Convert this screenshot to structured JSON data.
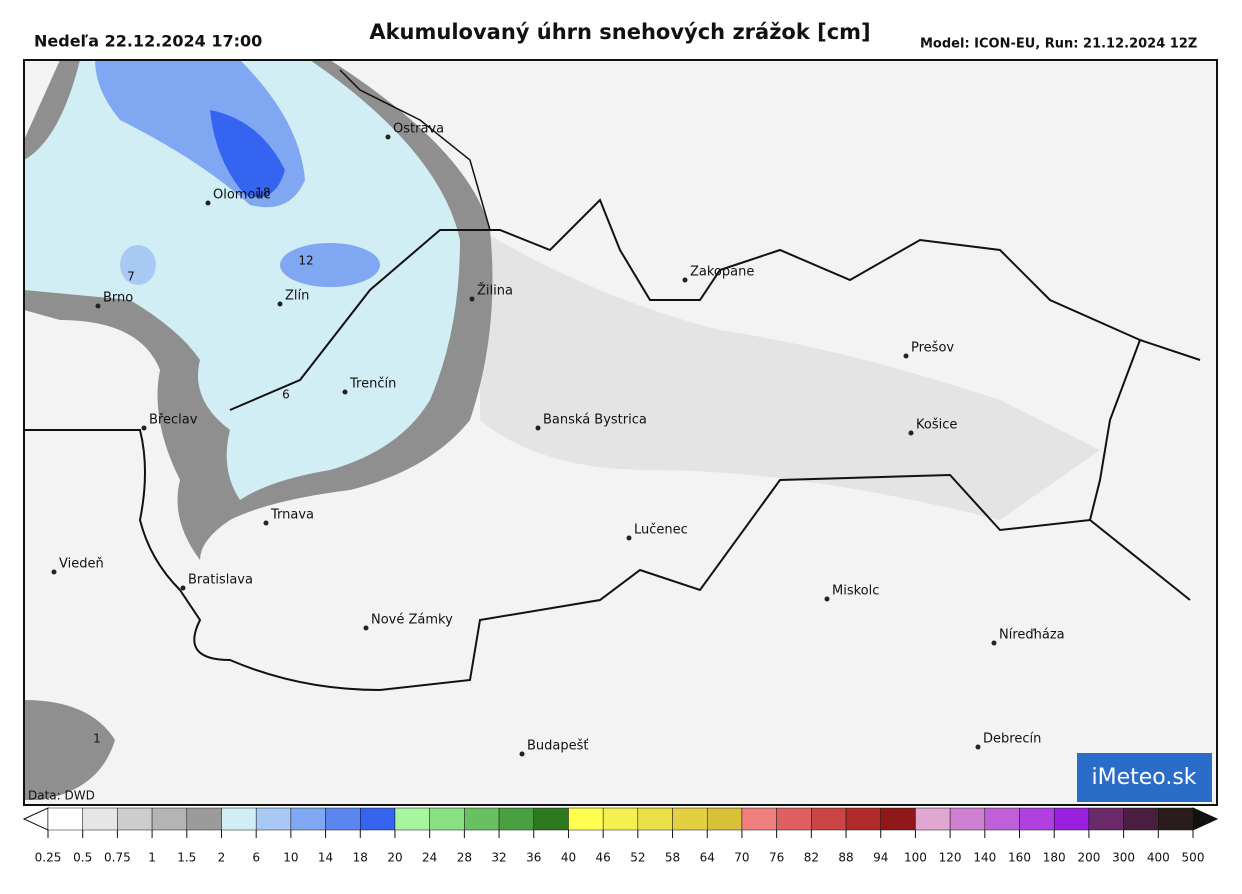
{
  "header": {
    "datetime": "Nedeľa 22.12.2024 17:00",
    "title": "Akumulovaný úhrn snehových zrážok [cm]",
    "model": "Model: ICON-EU, Run: 21.12.2024 12Z"
  },
  "map": {
    "cities": [
      "Ostrava",
      "Olomouc",
      "Zlín",
      "Brno",
      "Trenčín",
      "Žilina",
      "Zakopane",
      "Prešov",
      "Košice",
      "Banská Bystrica",
      "Břeclav",
      "Trnava",
      "Lučenec",
      "Viedeň",
      "Bratislava",
      "Nové Zámky",
      "Miskolc",
      "Níreďháza",
      "Budapešť",
      "Debrecín"
    ],
    "contour_labels": [
      "18",
      "12",
      "7",
      "6",
      "1"
    ],
    "credit": "Data: DWD",
    "logo": "iMeteo.sk"
  },
  "legend": {
    "labels": [
      "0.25",
      "0.5",
      "0.75",
      "1",
      "1.5",
      "2",
      "6",
      "10",
      "14",
      "18",
      "20",
      "24",
      "28",
      "32",
      "36",
      "40",
      "46",
      "52",
      "58",
      "64",
      "70",
      "76",
      "82",
      "88",
      "94",
      "100",
      "120",
      "140",
      "160",
      "180",
      "200",
      "300",
      "400",
      "500"
    ],
    "colors": [
      "#ffffff",
      "#e6e6e6",
      "#cdcdcd",
      "#b4b4b4",
      "#9b9b9b",
      "#d2eef5",
      "#a9c9f5",
      "#80a8f2",
      "#5a86ee",
      "#3564f0",
      "#a8f5a0",
      "#88e080",
      "#68c060",
      "#48a040",
      "#2d7a1e",
      "#ffff50",
      "#f5ef50",
      "#ece048",
      "#e2d040",
      "#d8c038",
      "#f08080",
      "#e06060",
      "#cc4545",
      "#b02a2a",
      "#901818",
      "#e0a8d0",
      "#d080d0",
      "#c060d8",
      "#b040e0",
      "#9a20e0",
      "#6a2a6a",
      "#4a1e40",
      "#281c1c"
    ]
  }
}
